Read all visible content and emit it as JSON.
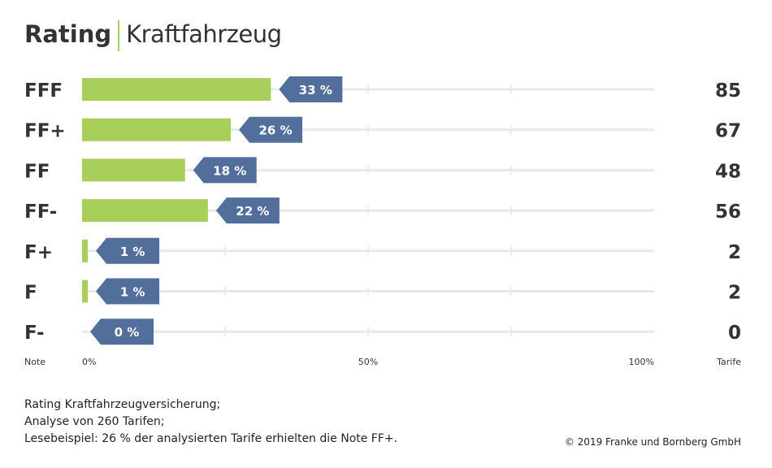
{
  "header": {
    "title_bold": "Rating",
    "title_light": "Kraftfahrzeug"
  },
  "chart_data": {
    "type": "bar",
    "orientation": "horizontal",
    "categories": [
      "FFF",
      "FF+",
      "FF",
      "FF-",
      "F+",
      "F",
      "F-"
    ],
    "values": [
      33,
      26,
      18,
      22,
      1,
      1,
      0
    ],
    "value_labels": [
      "33 %",
      "26 %",
      "18 %",
      "22 %",
      "1 %",
      "1 %",
      "0 %"
    ],
    "tarife": [
      "85",
      "67",
      "48",
      "56",
      "2",
      "2",
      "0"
    ],
    "xlim": [
      0,
      100
    ],
    "x_ticks": [
      0,
      25,
      50,
      75,
      100
    ],
    "x_tick_labels": {
      "0": "0%",
      "50": "50%",
      "100": "100%"
    },
    "left_axis_label": "Note",
    "right_axis_label": "Tarife",
    "grid": true,
    "colors": {
      "bar": "#a8cf5a",
      "label_box": "#516f9a",
      "grid": "#e8e8e8"
    }
  },
  "footer": {
    "lines": [
      "Rating Kraftfahrzeugversicherung;",
      "Analyse von 260 Tarifen;",
      "Lesebeispiel: 26 % der analysierten Tarife erhielten die Note FF+."
    ],
    "copyright": "© 2019 Franke und Bornberg GmbH"
  }
}
